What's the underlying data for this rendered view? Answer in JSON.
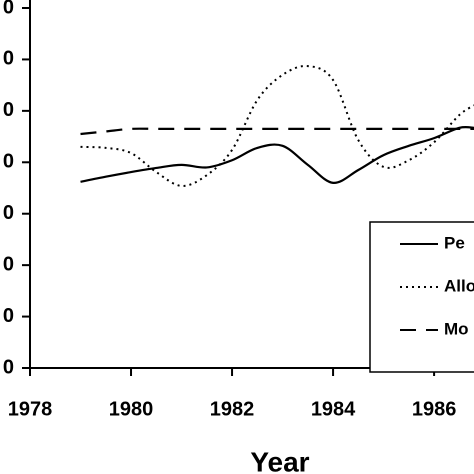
{
  "chart_data": {
    "type": "line",
    "xlabel": "Year",
    "x": [
      1979,
      1979.5,
      1980,
      1980.5,
      1981,
      1981.5,
      1982,
      1982.5,
      1983,
      1983.5,
      1984,
      1984.5,
      1985,
      1985.5,
      1986,
      1986.5,
      1986.8
    ],
    "series": [
      {
        "name": "Pe",
        "color": "#000000",
        "dash": "solid",
        "values": [
          3.62,
          3.72,
          3.81,
          3.89,
          3.95,
          3.9,
          4.04,
          4.28,
          4.32,
          3.95,
          3.6,
          3.85,
          4.14,
          4.32,
          4.47,
          4.67,
          4.67
        ]
      },
      {
        "name": "Allo",
        "color": "#000000",
        "dash": "dotted",
        "values": [
          4.3,
          4.28,
          4.18,
          3.81,
          3.54,
          3.75,
          4.24,
          5.21,
          5.7,
          5.87,
          5.6,
          4.43,
          3.91,
          4.04,
          4.39,
          4.92,
          5.11
        ]
      },
      {
        "name": "Mo",
        "color": "#000000",
        "dash": "dashed",
        "values": [
          4.55,
          4.6,
          4.65,
          4.65,
          4.65,
          4.65,
          4.65,
          4.65,
          4.65,
          4.65,
          4.65,
          4.65,
          4.65,
          4.65,
          4.65,
          4.65,
          4.65
        ]
      }
    ],
    "xlim": [
      1978,
      1986.79
    ],
    "xticks": [
      1978,
      1980,
      1982,
      1984,
      1986
    ],
    "ylim": [
      0,
      7
    ],
    "yticks": [
      {
        "value": 0,
        "label": "0"
      },
      {
        "value": 1,
        "label": "0"
      },
      {
        "value": 2,
        "label": "0"
      },
      {
        "value": 3,
        "label": "0"
      },
      {
        "value": 4,
        "label": "0"
      },
      {
        "value": 5,
        "label": "0"
      },
      {
        "value": 6,
        "label": "0"
      },
      {
        "value": 7,
        "label": "0"
      }
    ],
    "grid": false
  }
}
